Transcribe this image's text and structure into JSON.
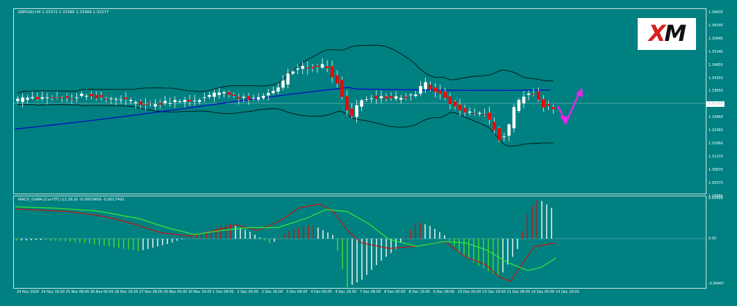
{
  "chart": {
    "title": "GBPUSD,H4  1.33372 1.33385 1.33364 1.33377",
    "last_price": "1.33377",
    "price_axis": [
      "1.36830",
      "1.36340",
      "1.35840",
      "1.35340",
      "1.34850",
      "1.34350",
      "1.33850",
      "1.33360",
      "1.32860",
      "1.32360",
      "1.31860",
      "1.31370",
      "1.30870",
      "1.30370",
      "1.29880"
    ],
    "macd_title": "MACD_OsMA [CurrTF] (12,26,9) -0.0003469 -0.0017491",
    "macd_axis": [
      "0.00409",
      "0.00",
      "-0.00467"
    ],
    "time_axis": [
      "24 Nov 2020",
      "24 Nov 16:00",
      "25 Nov 08:00",
      "26 Nov 00:00",
      "26 Nov 16:00",
      "27 Nov 08:00",
      "30 Nov 00:00",
      "30 Nov 16:00",
      "1 Dec 08:00",
      "2 Dec 00:00",
      "2 Dec 16:00",
      "3 Dec 08:00",
      "4 Dec 00:00",
      "4 Dec 16:00",
      "7 Dec 08:00",
      "8 Dec 00:00",
      "8 Dec 16:00",
      "9 Dec 08:00",
      "10 Dec 00:00",
      "10 Dec 16:00",
      "11 Dec 08:00",
      "14 Dec 00:00",
      "14 Dec 16:00"
    ],
    "colors": {
      "bg": "#008080",
      "bull": "#ffffff",
      "bear": "#ff0000",
      "ma": "#0000cc",
      "band": "#000000",
      "arrow": "#ee22ee",
      "macd_line": "#cc1111",
      "signal_line": "#33ee33"
    }
  },
  "logo": {
    "text": "XM"
  }
}
